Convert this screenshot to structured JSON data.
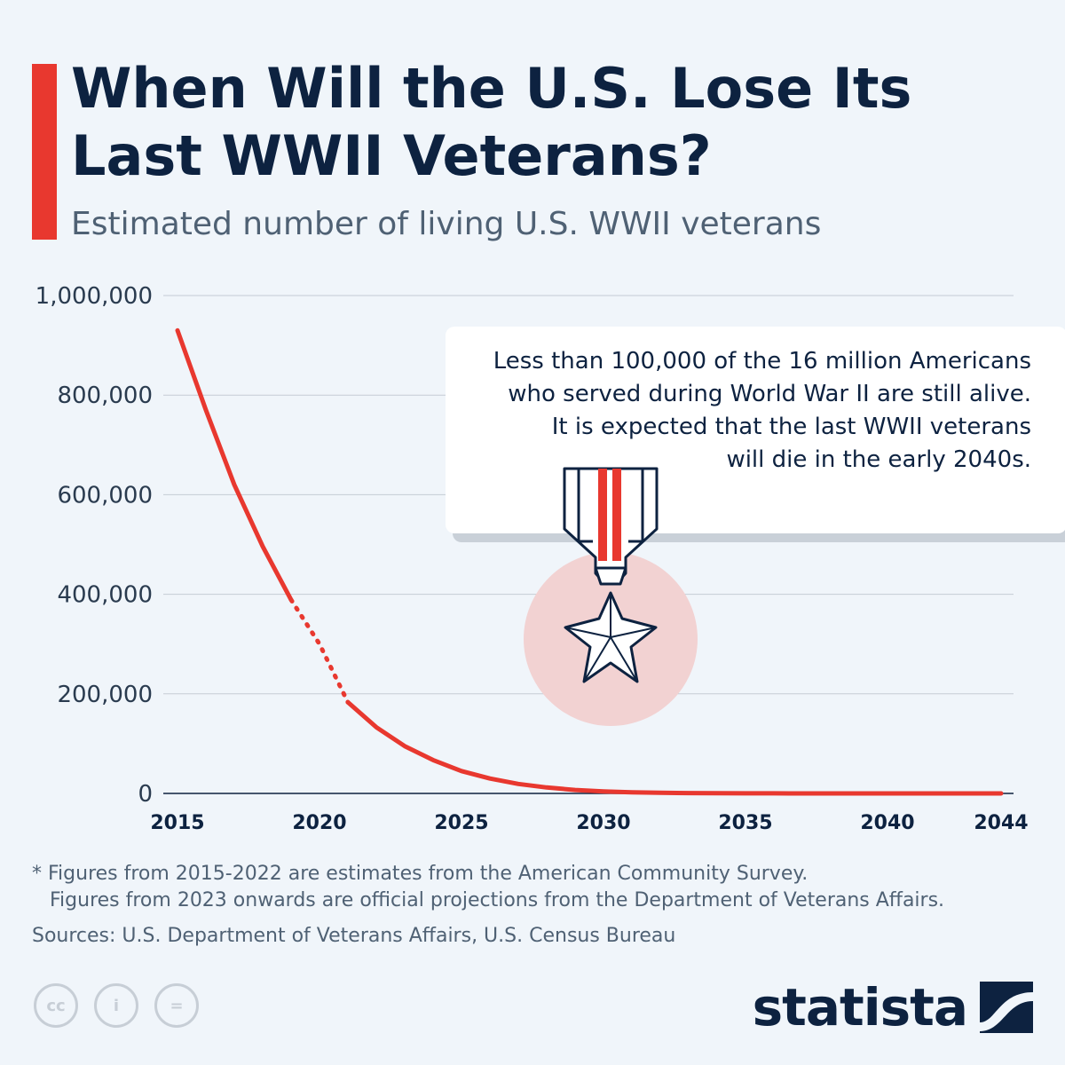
{
  "title": "When Will the U.S. Lose Its Last WWII Veterans?",
  "subtitle": "Estimated number of living U.S. WWII veterans",
  "colors": {
    "background": "#f0f5fa",
    "accent": "#e8382f",
    "title": "#0d2240",
    "text": "#4f6174",
    "grid": "#c5ccd4",
    "medal_circle": "#f2d2d2",
    "cc_icons": "#c7ced6"
  },
  "chart_data": {
    "type": "line",
    "title": "When Will the U.S. Lose Its Last WWII Veterans?",
    "subtitle": "Estimated number of living U.S. WWII veterans",
    "xlabel": "",
    "ylabel": "",
    "x_ticks": [
      "2015",
      "2020",
      "2025",
      "2030",
      "2035",
      "2040",
      "2044"
    ],
    "y_ticks": [
      "1,000,000",
      "800,000",
      "600,000",
      "400,000",
      "200,000",
      "0"
    ],
    "xlim": [
      2015,
      2044
    ],
    "ylim": [
      0,
      1000000
    ],
    "grid": true,
    "segments": [
      {
        "style": "solid",
        "x": [
          2015,
          2016,
          2017,
          2018,
          2019
        ],
        "y": [
          930000,
          770000,
          620000,
          496000,
          389000
        ]
      },
      {
        "style": "dotted",
        "x": [
          2019,
          2020,
          2021
        ],
        "y": [
          389000,
          300000,
          183000
        ]
      },
      {
        "style": "solid",
        "x": [
          2021,
          2022,
          2023,
          2024,
          2025,
          2026,
          2027,
          2028,
          2029,
          2030,
          2031,
          2032,
          2033,
          2034,
          2035,
          2036,
          2037,
          2038,
          2039,
          2040,
          2041,
          2042,
          2043,
          2044
        ],
        "y": [
          183000,
          133000,
          95000,
          67000,
          45000,
          30000,
          19000,
          12000,
          7000,
          4000,
          2200,
          1200,
          650,
          350,
          180,
          90,
          45,
          20,
          10,
          5,
          2,
          1,
          0,
          0
        ]
      }
    ]
  },
  "annotation": {
    "lines": [
      "Less than 100,000 of the 16 million Americans",
      "who served during World War II are still alive.",
      "It is expected that the last WWII veterans",
      "will die in the early 2040s."
    ],
    "icon": "medal-icon"
  },
  "footnote": {
    "line1": "* Figures from 2015-2022 are estimates from the American Community Survey.",
    "line2": "Figures from 2023 onwards are official projections from the Department of Veterans Affairs.",
    "sources": "Sources: U.S. Department of Veterans Affairs, U.S. Census Bureau"
  },
  "license_icons": [
    {
      "name": "cc-icon",
      "glyph": "cc"
    },
    {
      "name": "attribution-icon",
      "glyph": "i"
    },
    {
      "name": "no-derivatives-icon",
      "glyph": "="
    }
  ],
  "brand": "statista"
}
